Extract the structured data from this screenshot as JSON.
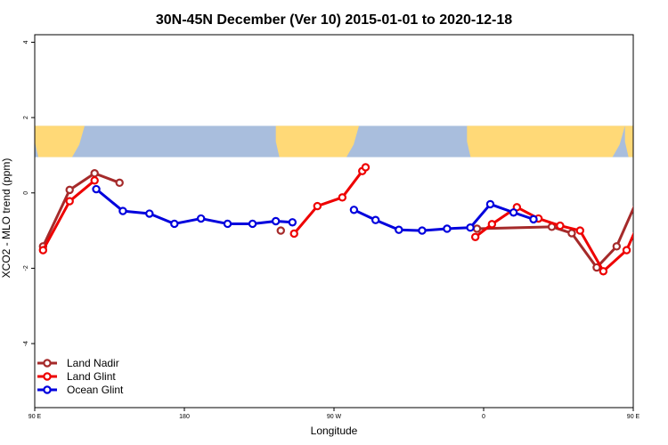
{
  "chart_data": {
    "type": "line",
    "title": "30N-45N December (Ver 10)   2015-01-01 to 2020-12-18",
    "xlabel": "Longitude",
    "ylabel": "XCO2 - MLO trend (ppm)",
    "xlim": [
      90,
      450
    ],
    "ylim": [
      -5.7,
      4.2
    ],
    "x_ticks": [
      {
        "value": 90,
        "label": "90 E"
      },
      {
        "value": 180,
        "label": "180"
      },
      {
        "value": 270,
        "label": "90 W"
      },
      {
        "value": 360,
        "label": "0"
      },
      {
        "value": 450,
        "label": "90 E"
      },
      {
        "value": 540,
        "label": "180"
      }
    ],
    "y_ticks": [
      {
        "value": 4,
        "label": "4"
      },
      {
        "value": 2,
        "label": "2"
      },
      {
        "value": 0,
        "label": "0"
      },
      {
        "value": -2,
        "label": "-2"
      },
      {
        "value": -4,
        "label": "-4"
      }
    ],
    "map_strip": {
      "y_top": 1.78,
      "y_bottom": 0.95,
      "land_color": "#FFD977",
      "ocean_color": "#A9BEDD"
    },
    "legend_position": "bottom-left",
    "series": [
      {
        "name": "Land Nadir",
        "color": "#A52A2A",
        "segments": [
          [
            {
              "x": 95,
              "y": -1.42
            },
            {
              "x": 111,
              "y": 0.08
            },
            {
              "x": 126,
              "y": 0.52
            },
            {
              "x": 141,
              "y": 0.27
            }
          ],
          [
            {
              "x": 238,
              "y": -1.0
            }
          ],
          [
            {
              "x": 356,
              "y": -0.95
            },
            {
              "x": 401,
              "y": -0.9
            },
            {
              "x": 413,
              "y": -1.07
            },
            {
              "x": 428,
              "y": -1.98
            },
            {
              "x": 440,
              "y": -1.42
            },
            {
              "x": 455,
              "y": 0.08
            },
            {
              "x": 470,
              "y": 0.52
            },
            {
              "x": 485,
              "y": 0.27
            }
          ]
        ]
      },
      {
        "name": "Land Glint",
        "color": "#EE0000",
        "segments": [
          [
            {
              "x": 95,
              "y": -1.52
            },
            {
              "x": 111,
              "y": -0.22
            },
            {
              "x": 126,
              "y": 0.33
            }
          ],
          [
            {
              "x": 246,
              "y": -1.08
            },
            {
              "x": 260,
              "y": -0.35
            },
            {
              "x": 275,
              "y": -0.12
            },
            {
              "x": 287,
              "y": 0.58
            },
            {
              "x": 289,
              "y": 0.68
            }
          ],
          [
            {
              "x": 355,
              "y": -1.17
            },
            {
              "x": 365,
              "y": -0.83
            },
            {
              "x": 380,
              "y": -0.38
            },
            {
              "x": 393,
              "y": -0.68
            },
            {
              "x": 406,
              "y": -0.87
            },
            {
              "x": 418,
              "y": -1.0
            },
            {
              "x": 432,
              "y": -2.08
            },
            {
              "x": 446,
              "y": -1.52
            },
            {
              "x": 459,
              "y": -0.22
            },
            {
              "x": 473,
              "y": 0.33
            }
          ]
        ]
      },
      {
        "name": "Ocean Glint",
        "color": "#0000DD",
        "segments": [
          [
            {
              "x": 127,
              "y": 0.1
            },
            {
              "x": 143,
              "y": -0.48
            },
            {
              "x": 159,
              "y": -0.55
            },
            {
              "x": 174,
              "y": -0.82
            },
            {
              "x": 190,
              "y": -0.68
            },
            {
              "x": 206,
              "y": -0.82
            },
            {
              "x": 221,
              "y": -0.82
            },
            {
              "x": 235,
              "y": -0.75
            },
            {
              "x": 245,
              "y": -0.78
            }
          ],
          [
            {
              "x": 282,
              "y": -0.45
            },
            {
              "x": 295,
              "y": -0.72
            },
            {
              "x": 309,
              "y": -0.98
            },
            {
              "x": 323,
              "y": -1.0
            },
            {
              "x": 338,
              "y": -0.95
            },
            {
              "x": 352,
              "y": -0.92
            },
            {
              "x": 364,
              "y": -0.3
            },
            {
              "x": 378,
              "y": -0.52
            },
            {
              "x": 390,
              "y": -0.7
            }
          ],
          [
            {
              "x": 473,
              "y": 0.1
            },
            {
              "x": 488,
              "y": -0.48
            },
            {
              "x": 503,
              "y": -0.55
            },
            {
              "x": 520,
              "y": -0.82
            }
          ]
        ]
      }
    ]
  }
}
